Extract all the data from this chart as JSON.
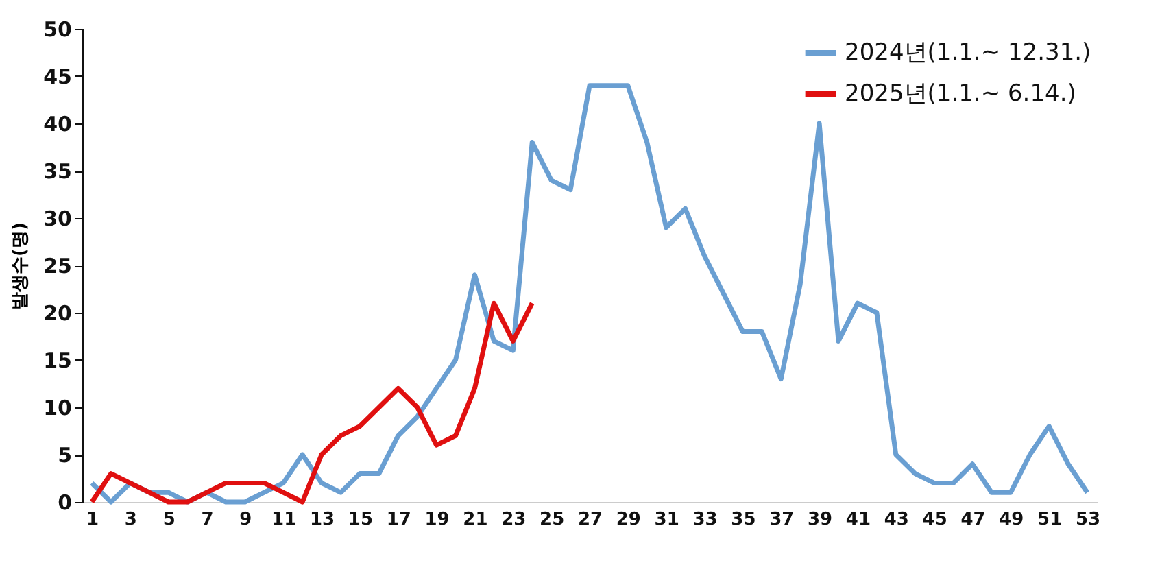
{
  "chart_data": {
    "type": "line",
    "ylabel": "발생수(명)",
    "x": [
      1,
      2,
      3,
      4,
      5,
      6,
      7,
      8,
      9,
      10,
      11,
      12,
      13,
      14,
      15,
      16,
      17,
      18,
      19,
      20,
      21,
      22,
      23,
      24,
      25,
      26,
      27,
      28,
      29,
      30,
      31,
      32,
      33,
      34,
      35,
      36,
      37,
      38,
      39,
      40,
      41,
      42,
      43,
      44,
      45,
      46,
      47,
      48,
      49,
      50,
      51,
      52,
      53
    ],
    "xlim": [
      0.5,
      53.5
    ],
    "xticks": [
      1,
      3,
      5,
      7,
      9,
      11,
      13,
      15,
      17,
      19,
      21,
      23,
      25,
      27,
      29,
      31,
      33,
      35,
      37,
      39,
      41,
      43,
      45,
      47,
      49,
      51,
      53
    ],
    "ylim": [
      0,
      50
    ],
    "yticks": [
      0,
      5,
      10,
      15,
      20,
      25,
      30,
      35,
      40,
      45,
      50
    ],
    "series": [
      {
        "name": "2024년(1.1.~ 12.31.)",
        "color": "#6a9fd2",
        "values": [
          2,
          0,
          2,
          1,
          1,
          0,
          1,
          0,
          0,
          1,
          2,
          5,
          2,
          1,
          3,
          3,
          7,
          9,
          12,
          15,
          24,
          17,
          16,
          38,
          34,
          33,
          44,
          44,
          44,
          38,
          29,
          31,
          26,
          22,
          18,
          18,
          13,
          23,
          40,
          17,
          21,
          20,
          5,
          3,
          2,
          2,
          4,
          1,
          1,
          5,
          8,
          4,
          1
        ]
      },
      {
        "name": "2025년(1.1.~ 6.14.)",
        "color": "#e01010",
        "values": [
          0,
          3,
          2,
          1,
          0,
          0,
          1,
          2,
          2,
          2,
          1,
          0,
          5,
          7,
          8,
          10,
          12,
          10,
          6,
          7,
          12,
          21,
          17,
          21,
          null,
          null,
          null,
          null,
          null,
          null,
          null,
          null,
          null,
          null,
          null,
          null,
          null,
          null,
          null,
          null,
          null,
          null,
          null,
          null,
          null,
          null,
          null,
          null,
          null,
          null,
          null,
          null,
          null
        ]
      }
    ],
    "grid": false,
    "legend": "top right",
    "marker": "none",
    "line_style": "solid"
  }
}
